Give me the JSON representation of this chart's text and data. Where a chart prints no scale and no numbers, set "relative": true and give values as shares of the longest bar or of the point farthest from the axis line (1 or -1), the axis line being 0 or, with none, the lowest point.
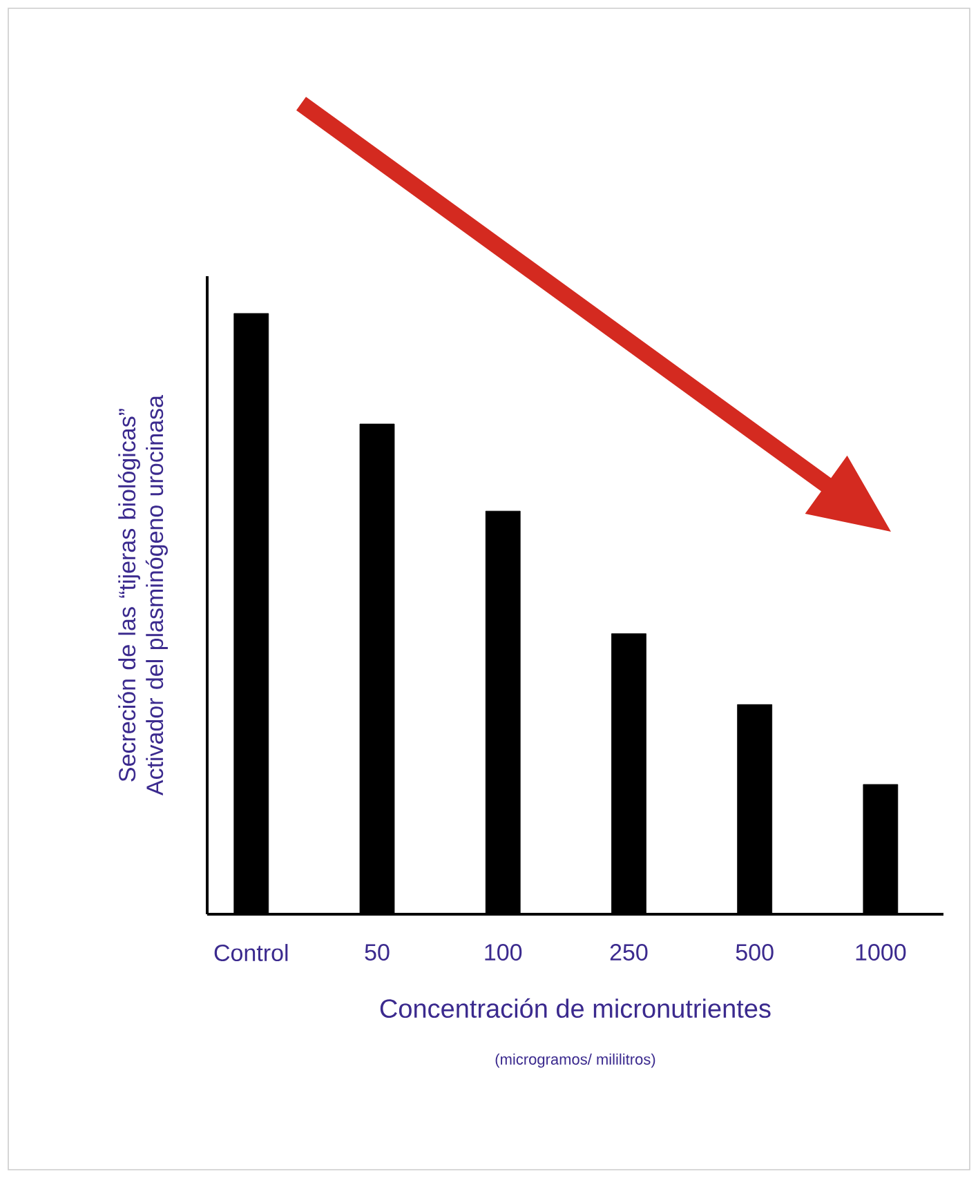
{
  "chart_data": {
    "type": "bar",
    "relative": true,
    "categories": [
      "Control",
      "50",
      "100",
      "250",
      "500",
      "1000"
    ],
    "values": [
      1,
      0.816,
      0.671,
      0.467,
      0.349,
      0.216
    ],
    "color": "#000000",
    "xlabel": "Concentración de micronutrientes",
    "ylabel": "Secreción de las “tijeras biológicas” Activador del plasminógeno urocinasa",
    "annotations": [
      "(microgramos/ mililitros)"
    ]
  }
}
